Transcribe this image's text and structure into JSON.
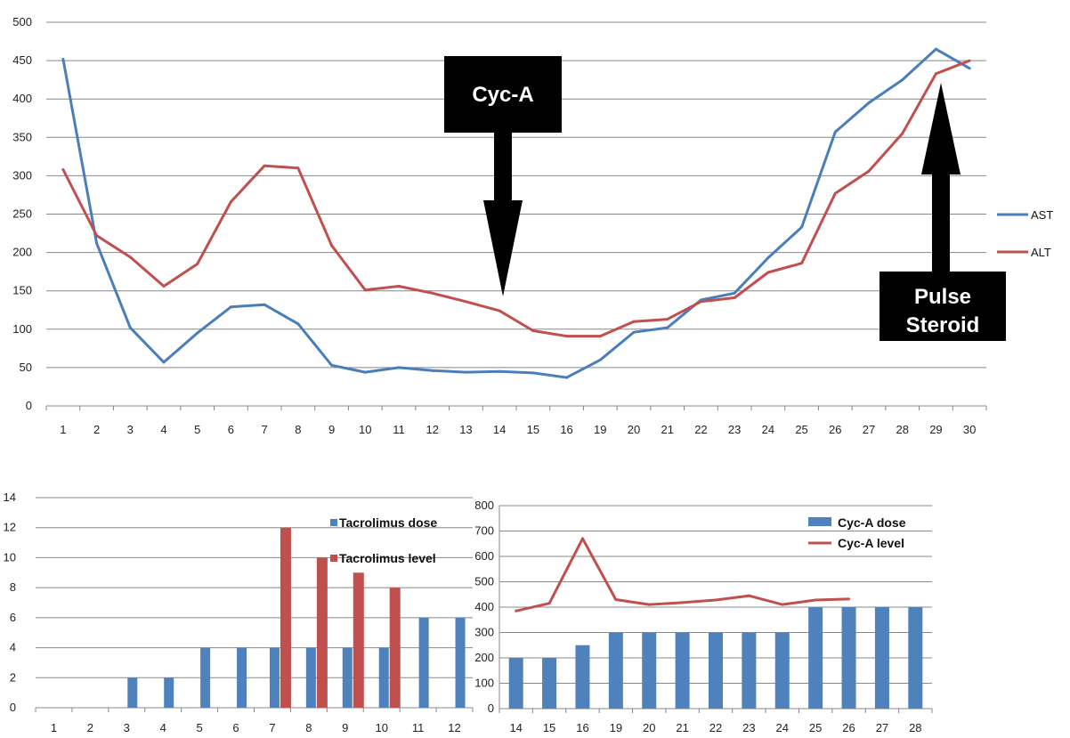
{
  "chart_data": [
    {
      "type": "line",
      "categories": [
        "1",
        "2",
        "3",
        "4",
        "5",
        "6",
        "7",
        "8",
        "9",
        "10",
        "11",
        "12",
        "13",
        "14",
        "15",
        "16",
        "19",
        "20",
        "21",
        "22",
        "23",
        "24",
        "25",
        "26",
        "27",
        "28",
        "29",
        "30"
      ],
      "series": [
        {
          "name": "AST",
          "color": "#4a7ebb",
          "values": [
            452,
            212,
            102,
            57,
            95,
            129,
            132,
            107,
            53,
            44,
            50,
            46,
            44,
            45,
            43,
            37,
            60,
            96,
            102,
            138,
            147,
            193,
            233,
            357,
            395,
            425,
            465,
            440
          ]
        },
        {
          "name": "ALT",
          "color": "#c0504d",
          "values": [
            308,
            222,
            194,
            156,
            185,
            266,
            313,
            310,
            209,
            151,
            156,
            147,
            136,
            124,
            98,
            91,
            91,
            110,
            113,
            136,
            141,
            174,
            186,
            277,
            306,
            355,
            433,
            450
          ]
        }
      ],
      "ylim": [
        0,
        500
      ],
      "yticks": [
        "0",
        "50",
        "100",
        "150",
        "200",
        "250",
        "300",
        "350",
        "400",
        "450",
        "500"
      ],
      "grid": true,
      "legend_position": "right",
      "annotations": [
        {
          "text": "Cyc-A",
          "points_to": "14"
        },
        {
          "text_lines": [
            "Pulse",
            "Steroid"
          ],
          "points_to": "29"
        }
      ]
    },
    {
      "type": "bar",
      "categories": [
        "1",
        "2",
        "3",
        "4",
        "5",
        "6",
        "7",
        "8",
        "9",
        "10",
        "11",
        "12"
      ],
      "series": [
        {
          "name": "Tacrolimus dose",
          "color": "#4f81bd",
          "values": [
            0,
            0,
            2,
            2,
            4,
            4,
            4,
            4,
            4,
            4,
            6,
            6
          ]
        },
        {
          "name": "Tacrolimus level",
          "color": "#c0504d",
          "values": [
            null,
            null,
            null,
            null,
            null,
            null,
            12,
            10,
            9,
            8,
            null,
            null
          ]
        }
      ],
      "ylim": [
        0,
        14
      ],
      "yticks": [
        "0",
        "2",
        "4",
        "6",
        "8",
        "10",
        "12",
        "14"
      ],
      "grid": true,
      "legend_position": "top-right"
    },
    {
      "type": "bar",
      "categories": [
        "14",
        "15",
        "16",
        "19",
        "20",
        "21",
        "22",
        "23",
        "24",
        "25",
        "26",
        "27",
        "28"
      ],
      "series": [
        {
          "name": "Cyc-A dose",
          "type": "bar",
          "color": "#4f81bd",
          "values": [
            200,
            200,
            250,
            300,
            300,
            300,
            300,
            300,
            300,
            400,
            400,
            400,
            400
          ]
        },
        {
          "name": "Cyc-A level",
          "type": "line",
          "color": "#c0504d",
          "values": [
            385,
            415,
            670,
            430,
            410,
            418,
            428,
            445,
            410,
            428,
            432,
            null,
            null
          ]
        }
      ],
      "ylim": [
        0,
        800
      ],
      "yticks": [
        "0",
        "100",
        "200",
        "300",
        "400",
        "500",
        "600",
        "700",
        "800"
      ],
      "grid": true,
      "legend_position": "top-right"
    }
  ]
}
